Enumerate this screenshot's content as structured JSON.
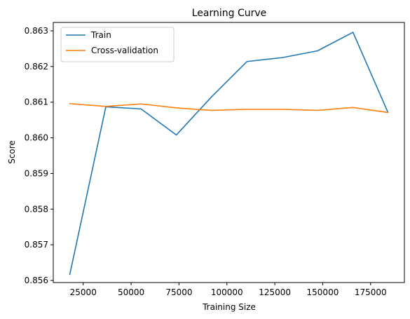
{
  "chart_data": {
    "type": "line",
    "title": "Learning Curve",
    "xlabel": "Training Size",
    "ylabel": "Score",
    "xlim": [
      9360,
      192640
    ],
    "ylim": [
      0.855941,
      0.863236
    ],
    "xticks": [
      25000,
      50000,
      75000,
      100000,
      125000,
      150000,
      175000
    ],
    "yticks": [
      0.856,
      0.857,
      0.858,
      0.859,
      0.86,
      0.861,
      0.862,
      0.863
    ],
    "xtick_labels": [
      "25000",
      "50000",
      "75000",
      "100000",
      "125000",
      "150000",
      "175000"
    ],
    "ytick_labels": [
      "0.856",
      "0.857",
      "0.858",
      "0.859",
      "0.860",
      "0.861",
      "0.862",
      "0.863"
    ],
    "legend": {
      "placement": "top-left"
    },
    "grid": false,
    "x": [
      18000,
      36800,
      55200,
      73600,
      92000,
      110500,
      129000,
      147300,
      165800,
      184000
    ],
    "series": [
      {
        "name": "Train",
        "color": "#1f77b4",
        "values": [
          0.85617,
          0.86087,
          0.86081,
          0.86008,
          0.86115,
          0.86214,
          0.86225,
          0.86244,
          0.86296,
          0.86072
        ]
      },
      {
        "name": "Cross-validation",
        "color": "#ff7f0e",
        "values": [
          0.86096,
          0.86088,
          0.86095,
          0.86084,
          0.86077,
          0.8608,
          0.8608,
          0.86077,
          0.86085,
          0.86071
        ]
      }
    ]
  }
}
